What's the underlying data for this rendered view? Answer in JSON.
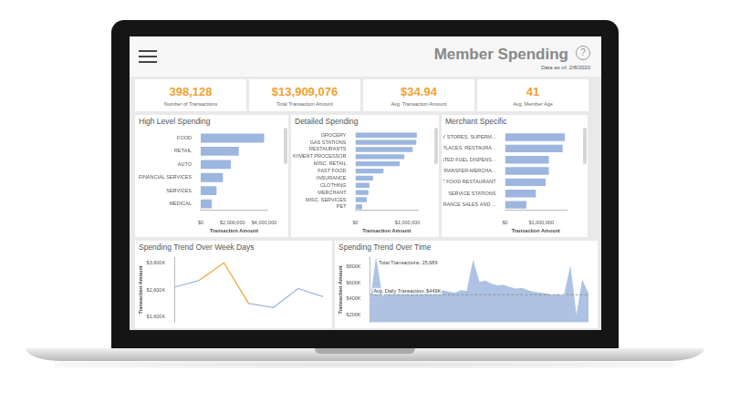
{
  "header": {
    "title": "Member Spending",
    "help_icon": "?",
    "data_as_of": "Data as of: 2/8/2020"
  },
  "kpis": [
    {
      "value": "398,128",
      "label": "Number of Transactions"
    },
    {
      "value": "$13,909,076",
      "label": "Total Transaction Amount"
    },
    {
      "value": "$34.94",
      "label": "Avg. Transaction Amount"
    },
    {
      "value": "41",
      "label": "Avg. Member Age"
    }
  ],
  "chart_data": [
    {
      "type": "bar",
      "title": "High Level Spending",
      "orientation": "horizontal",
      "categories": [
        "FOOD",
        "RETAIL",
        "AUTO",
        "FINANCIAL SERVICES",
        "SERVICES",
        "MEDICAL"
      ],
      "values": [
        4000000,
        2400000,
        1900000,
        1400000,
        1000000,
        700000
      ],
      "color": "#9db6df",
      "xlabel": "Transaction Amount",
      "xlim": [
        0,
        4200000
      ],
      "xticks": [
        {
          "value": 0,
          "label": "$0"
        },
        {
          "value": 2000000,
          "label": "$2,000,000"
        },
        {
          "value": 4000000,
          "label": "$4,000,000"
        }
      ],
      "grid": false
    },
    {
      "type": "bar",
      "title": "Detailed Spending",
      "orientation": "horizontal",
      "categories": [
        "GROCERY",
        "GAS STATIONS",
        "RESTAURANTS",
        "PAYMENT PROCESSOR",
        "MISC. RETAIL",
        "FAST FOOD",
        "INSURANCE",
        "CLOTHING",
        "MERCHANT",
        "MISC. SERVICES",
        "PET"
      ],
      "values": [
        1180000,
        1170000,
        1100000,
        940000,
        850000,
        540000,
        340000,
        270000,
        250000,
        220000,
        130000
      ],
      "color": "#9db6df",
      "xlabel": "Transaction Amount",
      "xlim": [
        0,
        1200000
      ],
      "xticks": [
        {
          "value": 0,
          "label": "$0"
        },
        {
          "value": 1000000,
          "label": "$1,000,000"
        }
      ],
      "grid": false
    },
    {
      "type": "bar",
      "title": "Merchant Specific",
      "orientation": "horizontal",
      "categories": [
        "GROCERY STORES, SUPERM...",
        "EATING PLACES, RESTAURA...",
        "AUTOMATED FUEL DISPENS...",
        "MONEY TRANSFER-MERCHA...",
        "FAST FOOD RESTAURANT",
        "SERVICE STATIONS",
        "INSURANCE SALES AND ..."
      ],
      "values": [
        1650000,
        1590000,
        1210000,
        1210000,
        1120000,
        850000,
        590000
      ],
      "color": "#9db6df",
      "xlabel": "Transaction Amount",
      "xlim": [
        0,
        1700000
      ],
      "xticks": [
        {
          "value": 0,
          "label": "$0"
        },
        {
          "value": 1000000,
          "label": "$1,000,000"
        }
      ],
      "grid": false
    },
    {
      "type": "line",
      "title": "Spending Trend Over Week Days",
      "categories": [
        null,
        null,
        null,
        null,
        null,
        null,
        null
      ],
      "values": [
        2700000,
        2950000,
        3600000,
        2100000,
        1950000,
        2650000,
        2350000
      ],
      "color": "#9db6df",
      "colors": [
        "#9db6df",
        "#9db6df",
        "#f0a232",
        "#9db6df",
        "#9db6df",
        "#9db6df",
        "#9db6df"
      ],
      "marker": "none",
      "ylabel": "Transaction Amount",
      "ylim": [
        1400000,
        3800000
      ],
      "yticks": [
        {
          "value": 1600000,
          "label": "$1,600K"
        },
        {
          "value": 2600000,
          "label": "$2,600K"
        },
        {
          "value": 3600000,
          "label": "$3,600K"
        }
      ],
      "tick_labels": "y",
      "grid": false
    },
    {
      "type": "area",
      "title": "Spending Trend Over Time",
      "categories": [
        null,
        null,
        null,
        null,
        null,
        null,
        null,
        null,
        null,
        null,
        null,
        null,
        null,
        null,
        null,
        null,
        null,
        null,
        null,
        null,
        null,
        null,
        null,
        null,
        null,
        null,
        null,
        null,
        null,
        null,
        null,
        null,
        null,
        null,
        null,
        null,
        null
      ],
      "values": [
        300000,
        880000,
        420000,
        460000,
        480000,
        470000,
        500000,
        490000,
        480000,
        510000,
        470000,
        490000,
        500000,
        480000,
        470000,
        500000,
        490000,
        860000,
        600000,
        620000,
        580000,
        560000,
        570000,
        540000,
        520000,
        530000,
        500000,
        480000,
        470000,
        460000,
        440000,
        450000,
        430000,
        780000,
        150000,
        620000,
        450000
      ],
      "color": "#aec3e3",
      "marker": "none",
      "ylabel": "Transaction Amount",
      "ylim": [
        100000,
        920000
      ],
      "yticks": [
        {
          "value": 200000,
          "label": "$200K"
        },
        {
          "value": 400000,
          "label": "$400K"
        },
        {
          "value": 600000,
          "label": "$600K"
        },
        {
          "value": 800000,
          "label": "$800K"
        }
      ],
      "annotations": [
        {
          "text": "Total Transactions: 25,689",
          "x": 1,
          "y": 880000
        },
        {
          "text": "Avg. Daily Transaction: $449K",
          "y": 449000,
          "line_style": "dashed"
        }
      ],
      "tick_labels": "y",
      "grid": false
    }
  ]
}
